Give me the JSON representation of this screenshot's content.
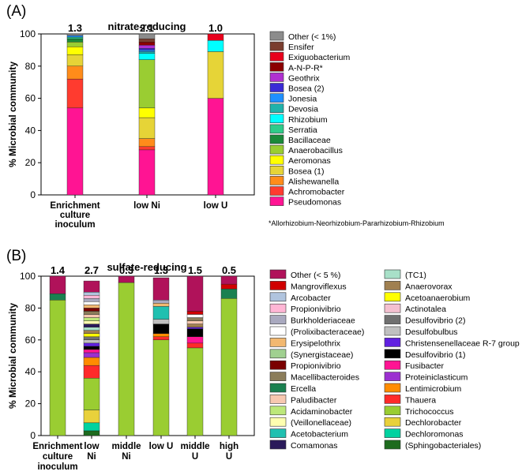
{
  "chart_data": [
    {
      "type": "stacked-bar",
      "panel_label": "(A)",
      "title": "nitrate-reducing",
      "ylabel": "% Microbial community",
      "xlabel": "",
      "ylim": [
        0,
        100
      ],
      "yticks": [
        0,
        20,
        40,
        60,
        80,
        100
      ],
      "categories": [
        [
          "Enrichment",
          "culture",
          "inoculum"
        ],
        [
          "low Ni"
        ],
        [
          "low U"
        ]
      ],
      "bar_labels": [
        "1.3",
        "2.1",
        "1.0"
      ],
      "legend_note": "*Allorhizobium-Neorhizobium-Pararhizobium-Rhizobium",
      "series": [
        {
          "name": "Pseudomonas",
          "color": "#ff1493",
          "values": [
            54,
            28,
            60
          ]
        },
        {
          "name": "Achromobacter",
          "color": "#ff3b2f",
          "values": [
            18,
            2,
            0
          ]
        },
        {
          "name": "Alishewanella",
          "color": "#ff8c1a",
          "values": [
            8,
            5,
            0
          ]
        },
        {
          "name": "Bosea (1)",
          "color": "#e6d437",
          "values": [
            7,
            13,
            29
          ]
        },
        {
          "name": "Aeromonas",
          "color": "#ffff00",
          "values": [
            5,
            6,
            0
          ]
        },
        {
          "name": "Anaerobacillus",
          "color": "#9acd32",
          "values": [
            3,
            30,
            0
          ]
        },
        {
          "name": "Bacillaceae",
          "color": "#1a8a3a",
          "values": [
            2,
            0,
            0
          ]
        },
        {
          "name": "Serratia",
          "color": "#2ecc8a",
          "values": [
            1,
            0,
            0
          ]
        },
        {
          "name": "Rhizobium",
          "color": "#00ffff",
          "values": [
            0,
            4,
            7
          ]
        },
        {
          "name": "Devosia",
          "color": "#20b2aa",
          "values": [
            0,
            1,
            0
          ]
        },
        {
          "name": "Jonesia",
          "color": "#1e90ff",
          "values": [
            1,
            1,
            0
          ]
        },
        {
          "name": "Bosea (2)",
          "color": "#3a2bd6",
          "values": [
            0,
            1,
            0
          ]
        },
        {
          "name": "Geothrix",
          "color": "#b030d0",
          "values": [
            0,
            2,
            0
          ]
        },
        {
          "name": "A-N-P-R*",
          "color": "#8b0000",
          "values": [
            0,
            2,
            0
          ]
        },
        {
          "name": "Exiguobacterium",
          "color": "#e8001c",
          "values": [
            0,
            0,
            4
          ]
        },
        {
          "name": "Ensifer",
          "color": "#7a3d2e",
          "values": [
            0,
            2,
            0
          ]
        },
        {
          "name": "Other (< 1%)",
          "color": "#8c8c8c",
          "values": [
            1,
            3,
            0
          ]
        }
      ]
    },
    {
      "type": "stacked-bar",
      "panel_label": "(B)",
      "title": "sulfate-reducing",
      "ylabel": "% Microbial community",
      "xlabel": "",
      "ylim": [
        0,
        100
      ],
      "yticks": [
        0,
        20,
        40,
        60,
        80,
        100
      ],
      "categories": [
        [
          "Enrichment",
          "culture",
          "inoculum"
        ],
        [
          "low",
          "Ni"
        ],
        [
          "middle",
          "Ni"
        ],
        [
          "low U"
        ],
        [
          "middle",
          "U"
        ],
        [
          "high",
          "U"
        ]
      ],
      "bar_labels": [
        "1.4",
        "2.7",
        "0.3",
        "1.3",
        "1.5",
        "0.5"
      ],
      "legend_columns": 2,
      "series": [
        {
          "name": "(Sphingobacteriales)",
          "color": "#1e6b1e",
          "values": [
            0,
            3,
            0,
            0,
            0,
            0
          ]
        },
        {
          "name": "Dechloromonas",
          "color": "#00d2a0",
          "values": [
            0,
            5,
            0,
            0,
            0,
            0
          ]
        },
        {
          "name": "Dechlorobacter",
          "color": "#e9d13b",
          "values": [
            0,
            8,
            0,
            0,
            0,
            0
          ]
        },
        {
          "name": "Trichococcus",
          "color": "#9acd32",
          "values": [
            85,
            20,
            96,
            60,
            55,
            86
          ]
        },
        {
          "name": "Thauera",
          "color": "#ff2a2a",
          "values": [
            0,
            8,
            0,
            2,
            3,
            0
          ]
        },
        {
          "name": "Lentimicrobium",
          "color": "#ff8c00",
          "values": [
            0,
            5,
            0,
            2,
            0,
            0
          ]
        },
        {
          "name": "Proteiniclasticum",
          "color": "#9b30d0",
          "values": [
            0,
            3,
            0,
            0,
            0,
            0
          ]
        },
        {
          "name": "Fusibacter",
          "color": "#ff1493",
          "values": [
            0,
            2,
            0,
            0,
            4,
            0
          ]
        },
        {
          "name": "Desulfovibrio (1)",
          "color": "#000000",
          "values": [
            0,
            2,
            0,
            6,
            5,
            0
          ]
        },
        {
          "name": "Christensenellaceae R-7 group",
          "color": "#6020e0",
          "values": [
            0,
            2,
            0,
            0,
            1,
            0
          ]
        },
        {
          "name": "Desulfobulbus",
          "color": "#c0c0c0",
          "values": [
            0,
            2,
            0,
            3,
            0,
            0
          ]
        },
        {
          "name": "Desulfovibrio (2)",
          "color": "#707070",
          "values": [
            0,
            2,
            0,
            0,
            0,
            0
          ]
        },
        {
          "name": "Actinotalea",
          "color": "#f4c0d0",
          "values": [
            0,
            0,
            0,
            0,
            0,
            0
          ]
        },
        {
          "name": "Acetoanaerobium",
          "color": "#ffff00",
          "values": [
            0,
            2,
            0,
            0,
            0,
            0
          ]
        },
        {
          "name": "Anaerovorax",
          "color": "#a08050",
          "values": [
            0,
            2,
            0,
            0,
            2,
            0
          ]
        },
        {
          "name": "(TC1)",
          "color": "#a8e0c8",
          "values": [
            0,
            2,
            0,
            0,
            0,
            0
          ]
        },
        {
          "name": "Comamonas",
          "color": "#2a1a5a",
          "values": [
            0,
            2,
            0,
            0,
            0,
            0
          ]
        },
        {
          "name": "Acetobacterium",
          "color": "#20c0b0",
          "values": [
            0,
            0,
            0,
            8,
            0,
            0
          ]
        },
        {
          "name": "(Veillonellaceae)",
          "color": "#ffffb0",
          "values": [
            0,
            2,
            0,
            0,
            0,
            0
          ]
        },
        {
          "name": "Acidaminobacter",
          "color": "#bde87a",
          "values": [
            0,
            2,
            0,
            0,
            0,
            0
          ]
        },
        {
          "name": "Paludibacter",
          "color": "#f7c8b0",
          "values": [
            0,
            2,
            0,
            0,
            2,
            0
          ]
        },
        {
          "name": "Ercella",
          "color": "#1a8050",
          "values": [
            4,
            0,
            0,
            0,
            0,
            6
          ]
        },
        {
          "name": "Macellibacteroides",
          "color": "#8b7d5a",
          "values": [
            0,
            2,
            0,
            0,
            2,
            0
          ]
        },
        {
          "name": "Propionivibrio",
          "color": "#7a0000",
          "values": [
            0,
            2,
            0,
            0,
            0,
            0
          ]
        },
        {
          "name": "(Synergistaceae)",
          "color": "#a0d090",
          "values": [
            0,
            0,
            0,
            0,
            0,
            0
          ]
        },
        {
          "name": "Erysipelothrix",
          "color": "#f2b870",
          "values": [
            0,
            2,
            0,
            2,
            0,
            0
          ]
        },
        {
          "name": "(Prolixibacteraceae)",
          "color": "#ffffff",
          "values": [
            0,
            2,
            0,
            0,
            2,
            0
          ]
        },
        {
          "name": "Burkholderiaceae",
          "color": "#a9a9bf",
          "values": [
            0,
            2,
            0,
            2,
            0,
            0
          ]
        },
        {
          "name": "Propionivibrio",
          "color": "#ffb6d5",
          "values": [
            0,
            2,
            0,
            0,
            0,
            0
          ]
        },
        {
          "name": "Arcobacter",
          "color": "#b0c4de",
          "values": [
            0,
            2,
            0,
            0,
            0,
            0
          ]
        },
        {
          "name": "Mangroviflexus",
          "color": "#d00000",
          "values": [
            0,
            0,
            0,
            0,
            2,
            3
          ]
        },
        {
          "name": "Other (< 5 %)",
          "color": "#b0125a",
          "values": [
            11,
            7,
            4,
            14,
            22,
            5
          ]
        }
      ]
    }
  ]
}
